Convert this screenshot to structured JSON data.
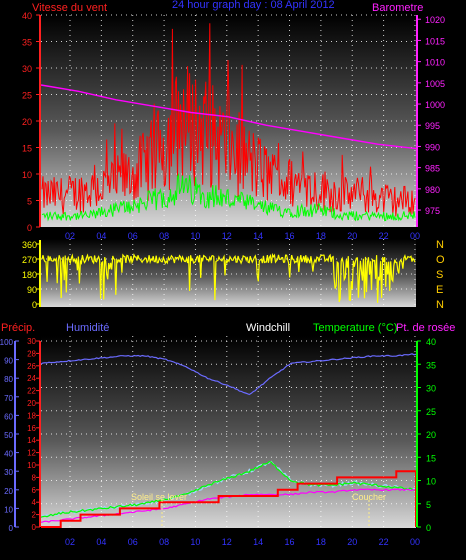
{
  "colors": {
    "wind": "#ff0000",
    "gust_low": "#00ff00",
    "pressure": "#ff00ff",
    "direction": "#ffff00",
    "humidity": "#6b6bff",
    "temperature": "#00ff00",
    "dewpoint": "#ff00ff",
    "windchill": "#9fd7ff",
    "rain": "#ff0000",
    "axis_precip": "#ff2020",
    "axis_hum": "#6b6bff",
    "axis_temp": "#00ff00",
    "sun_marker": "#ffee88",
    "title": "#3333ff"
  },
  "header": {
    "wind_label": "Vitesse du vent",
    "title": "24 hour graph day : 08 April 2012",
    "baro_label": "Barometre"
  },
  "lower_header": {
    "precip": "Précip.",
    "humidity": "Humidité",
    "windchill": "Windchill",
    "temperature": "Temperature (°C)",
    "dewpoint": "Pt. de rosée"
  },
  "compass": [
    "N",
    "O",
    "S",
    "E",
    "N"
  ],
  "markers": {
    "sunrise": "Soleil se lever",
    "sunset": "Coucher"
  },
  "chart_data": [
    {
      "type": "line",
      "name": "wind_and_pressure",
      "x_ticks": [
        "02",
        "04",
        "06",
        "08",
        "10",
        "12",
        "14",
        "16",
        "18",
        "20",
        "22",
        "00"
      ],
      "y_left_ticks": [
        0,
        5,
        10,
        15,
        20,
        25,
        30,
        35,
        40
      ],
      "y_left_range": [
        0,
        40
      ],
      "y_right_ticks": [
        975,
        980,
        985,
        990,
        995,
        1000,
        1005,
        1010,
        1015,
        1020
      ],
      "y_right_range": [
        971,
        1021
      ],
      "pressure_hpa": [
        1004.5,
        1003,
        1001,
        999.5,
        998,
        997,
        995,
        993.5,
        992,
        990.5,
        989.5
      ],
      "wind_mean_profile": [
        6,
        6,
        7,
        8,
        10,
        14,
        20,
        18,
        15,
        12,
        9,
        8,
        7,
        6,
        6,
        5,
        5
      ],
      "wind_gust_profile": [
        2,
        2,
        2,
        3,
        4,
        5,
        7,
        6,
        5,
        4,
        3,
        3,
        3,
        2,
        2,
        2,
        2
      ],
      "grid": true
    },
    {
      "type": "scatter",
      "name": "wind_direction",
      "y_ticks": [
        0,
        90,
        180,
        270,
        360
      ],
      "y_range": [
        0,
        360
      ],
      "typical_direction_deg": 270
    },
    {
      "type": "line",
      "name": "humidity_temperature_precip",
      "x_ticks": [
        "02",
        "04",
        "06",
        "08",
        "10",
        "12",
        "14",
        "16",
        "18",
        "20",
        "22",
        "00"
      ],
      "humidity_ticks": [
        0,
        10,
        20,
        30,
        40,
        50,
        60,
        70,
        80,
        90,
        100
      ],
      "humidity_range": [
        0,
        100
      ],
      "precip_ticks": [
        0,
        2,
        4,
        6,
        8,
        10,
        12,
        14,
        16,
        18,
        20,
        22,
        24,
        26,
        28,
        30
      ],
      "precip_range": [
        0,
        30
      ],
      "temp_ticks": [
        0,
        5,
        10,
        15,
        20,
        25,
        30,
        35,
        40
      ],
      "temp_range": [
        0,
        40
      ],
      "humidity_pct": [
        88,
        89,
        90,
        91,
        92,
        92,
        90,
        86,
        80,
        76,
        71,
        80,
        88,
        89,
        90,
        91,
        92,
        92,
        93
      ],
      "temperature_c": [
        2,
        3,
        3.5,
        4,
        4.5,
        5,
        6,
        7,
        9,
        10.5,
        12,
        14,
        10,
        9,
        9,
        9.5,
        9,
        8.5,
        8
      ],
      "dewpoint_c": [
        1,
        1.5,
        2,
        2.5,
        3,
        3.5,
        4,
        5,
        6,
        6.5,
        7,
        7,
        7,
        7.5,
        7.5,
        8,
        8,
        8,
        8
      ],
      "rain_mm": [
        0,
        1,
        2,
        2,
        3,
        3,
        4,
        4,
        4,
        5,
        5,
        5,
        6,
        7,
        7,
        8,
        8,
        8,
        9
      ],
      "grid": true
    }
  ]
}
